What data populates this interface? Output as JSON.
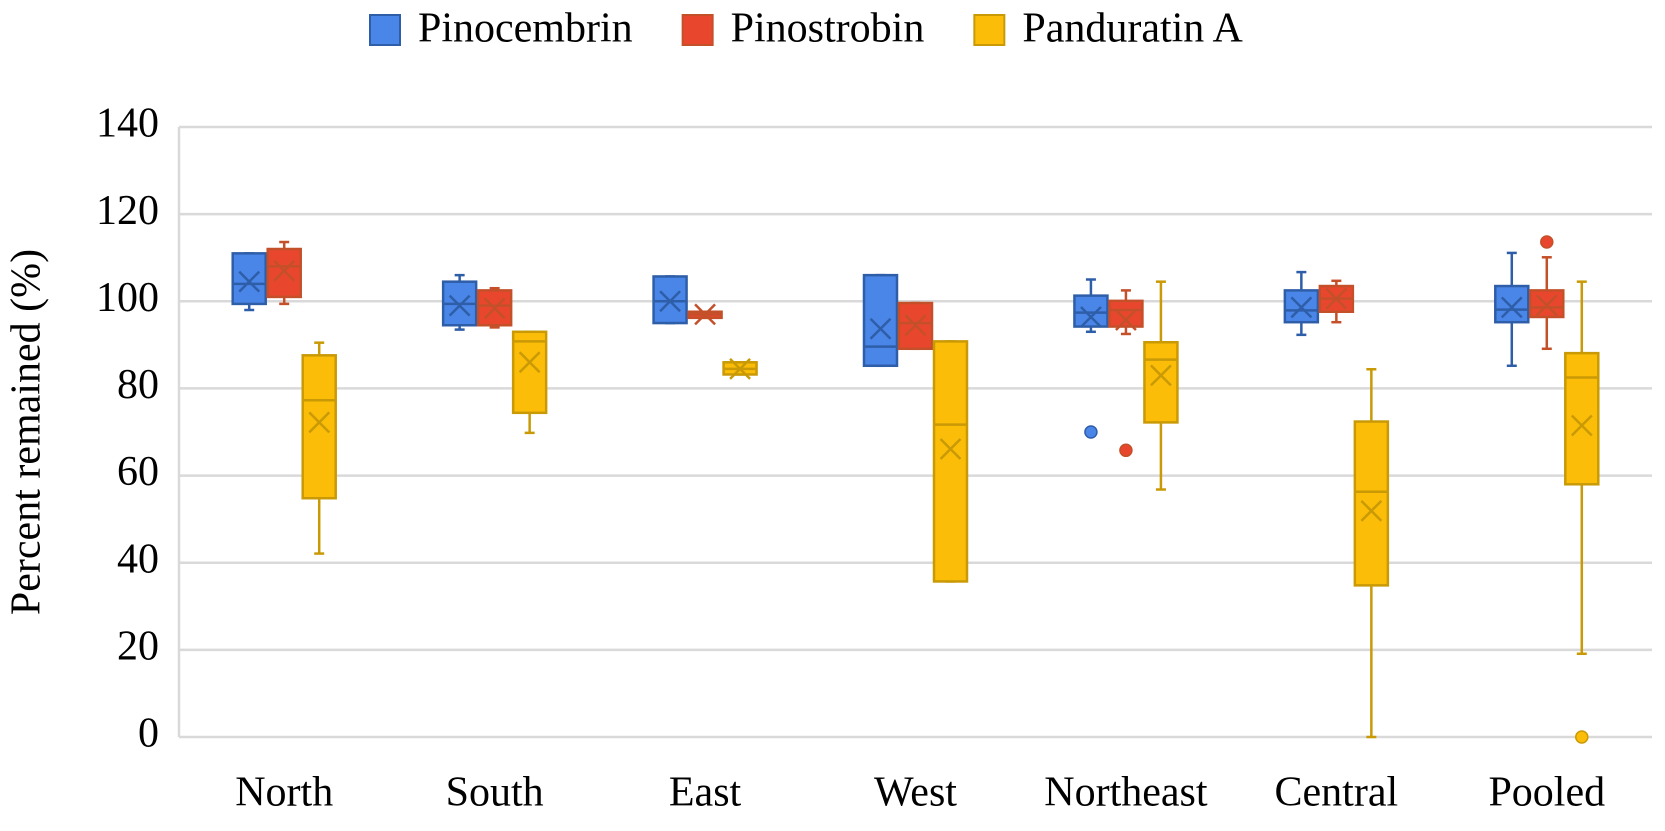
{
  "chart_data": {
    "type": "box",
    "y_label": "Percent remained (%)",
    "categories": [
      "North",
      "South",
      "East",
      "West",
      "Northeast",
      "Central",
      "Pooled"
    ],
    "ylim": [
      0,
      140
    ],
    "yticks": [
      0,
      20,
      40,
      60,
      80,
      100,
      120,
      140
    ],
    "grid": true,
    "legend": "top",
    "series": [
      {
        "name": "Pinocembrin",
        "color": "#4a86e8",
        "edge": "#2f5ea8",
        "stats": [
          {
            "min": 98,
            "q1": 99.4,
            "median": 104,
            "q3": 111,
            "max": 111,
            "mean": 104.5,
            "outliers": []
          },
          {
            "min": 93.5,
            "q1": 94.5,
            "median": 99.4,
            "q3": 104.5,
            "max": 106,
            "mean": 99,
            "outliers": []
          },
          {
            "min": 95,
            "q1": 95,
            "median": 100,
            "q3": 105.7,
            "max": 105.7,
            "mean": 100,
            "outliers": []
          },
          {
            "min": 85.2,
            "q1": 85.2,
            "median": 89.6,
            "q3": 106,
            "max": 106,
            "mean": 93.7,
            "outliers": []
          },
          {
            "min": 93,
            "q1": 94.2,
            "median": 97.4,
            "q3": 101.3,
            "max": 105,
            "mean": 96.4,
            "outliers": [
              70
            ]
          },
          {
            "min": 92.3,
            "q1": 95.2,
            "median": 97.9,
            "q3": 102.5,
            "max": 106.7,
            "mean": 98.6,
            "outliers": []
          },
          {
            "min": 85.2,
            "q1": 95.2,
            "median": 98.1,
            "q3": 103.5,
            "max": 111.1,
            "mean": 98.6,
            "outliers": []
          }
        ]
      },
      {
        "name": "Pinostrobin",
        "color": "#e8472e",
        "edge": "#c4502a",
        "stats": [
          {
            "min": 99.4,
            "q1": 101,
            "median": 108,
            "q3": 112,
            "max": 113.6,
            "mean": 107,
            "outliers": []
          },
          {
            "min": 94,
            "q1": 94.5,
            "median": 99,
            "q3": 102.5,
            "max": 103,
            "mean": 98.4,
            "outliers": []
          },
          {
            "min": 96.2,
            "q1": 96.2,
            "median": 97,
            "q3": 97.6,
            "max": 97.6,
            "mean": 97,
            "outliers": []
          },
          {
            "min": 89.1,
            "q1": 89.1,
            "median": 95,
            "q3": 99.6,
            "max": 99.6,
            "mean": 94.5,
            "outliers": []
          },
          {
            "min": 92.5,
            "q1": 94.2,
            "median": 98,
            "q3": 100.1,
            "max": 102.5,
            "mean": 95.7,
            "outliers": [
              65.8
            ]
          },
          {
            "min": 95.2,
            "q1": 97.6,
            "median": 100.6,
            "q3": 103.5,
            "max": 104.7,
            "mean": 100.6,
            "outliers": []
          },
          {
            "min": 89.1,
            "q1": 96.4,
            "median": 98.6,
            "q3": 102.5,
            "max": 110.1,
            "mean": 99.1,
            "outliers": [
              113.6
            ]
          }
        ]
      },
      {
        "name": "Panduratin A",
        "color": "#fbbd08",
        "edge": "#c99a06",
        "stats": [
          {
            "min": 42.1,
            "q1": 54.8,
            "median": 77.3,
            "q3": 87.6,
            "max": 90.5,
            "mean": 72.2,
            "outliers": []
          },
          {
            "min": 69.8,
            "q1": 74.4,
            "median": 90.8,
            "q3": 93,
            "max": 93,
            "mean": 86,
            "outliers": []
          },
          {
            "min": 83.2,
            "q1": 83.2,
            "median": 84.5,
            "q3": 86,
            "max": 86,
            "mean": 84.5,
            "outliers": []
          },
          {
            "min": 35.7,
            "q1": 35.7,
            "median": 71.7,
            "q3": 90.8,
            "max": 90.8,
            "mean": 66.1,
            "outliers": []
          },
          {
            "min": 56.8,
            "q1": 72.2,
            "median": 86.6,
            "q3": 90.6,
            "max": 104.5,
            "mean": 83,
            "outliers": []
          },
          {
            "min": 0,
            "q1": 34.8,
            "median": 56.3,
            "q3": 72.4,
            "max": 84.4,
            "mean": 51.9,
            "outliers": []
          },
          {
            "min": 19.1,
            "q1": 58,
            "median": 82.5,
            "q3": 88.1,
            "max": 104.5,
            "mean": 71.5,
            "outliers": [
              0
            ]
          }
        ]
      }
    ]
  }
}
